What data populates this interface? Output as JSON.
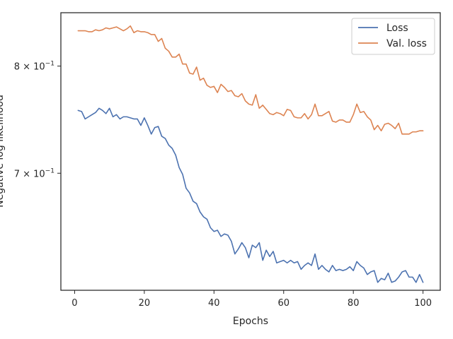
{
  "chart_data": {
    "type": "line",
    "title": "",
    "xlabel": "Epochs",
    "ylabel": "Negative log likelihood",
    "xlim": [
      -3.95,
      104.95
    ],
    "ylim": [
      0.605,
      0.855
    ],
    "yscale": "log",
    "grid": false,
    "legend_position": "top-right",
    "x_ticks": [
      0,
      20,
      40,
      60,
      80,
      100
    ],
    "x_tick_labels": [
      "0",
      "20",
      "40",
      "60",
      "80",
      "100"
    ],
    "y_ticks": [
      0.7,
      0.8
    ],
    "y_tick_labels": [
      {
        "base": "7 × 10",
        "exp": "−1"
      },
      {
        "base": "8 × 10",
        "exp": "−1"
      }
    ],
    "x": [
      1,
      2,
      3,
      4,
      5,
      6,
      7,
      8,
      9,
      10,
      11,
      12,
      13,
      14,
      15,
      16,
      17,
      18,
      19,
      20,
      21,
      22,
      23,
      24,
      25,
      26,
      27,
      28,
      29,
      30,
      31,
      32,
      33,
      34,
      35,
      36,
      37,
      38,
      39,
      40,
      41,
      42,
      43,
      44,
      45,
      46,
      47,
      48,
      49,
      50,
      51,
      52,
      53,
      54,
      55,
      56,
      57,
      58,
      59,
      60,
      61,
      62,
      63,
      64,
      65,
      66,
      67,
      68,
      69,
      70,
      71,
      72,
      73,
      74,
      75,
      76,
      77,
      78,
      79,
      80,
      81,
      82,
      83,
      84,
      85,
      86,
      87,
      88,
      89,
      90,
      91,
      92,
      93,
      94,
      95,
      96,
      97,
      98,
      99,
      100
    ],
    "series": [
      {
        "name": "Loss",
        "color": "#4c72b0",
        "values": [
          0.757,
          0.756,
          0.749,
          0.751,
          0.753,
          0.755,
          0.759,
          0.757,
          0.754,
          0.759,
          0.751,
          0.753,
          0.749,
          0.751,
          0.751,
          0.75,
          0.749,
          0.749,
          0.743,
          0.75,
          0.743,
          0.735,
          0.741,
          0.742,
          0.733,
          0.731,
          0.725,
          0.722,
          0.716,
          0.705,
          0.699,
          0.687,
          0.683,
          0.676,
          0.674,
          0.667,
          0.663,
          0.661,
          0.654,
          0.651,
          0.652,
          0.647,
          0.649,
          0.648,
          0.643,
          0.633,
          0.637,
          0.642,
          0.638,
          0.63,
          0.64,
          0.638,
          0.642,
          0.628,
          0.636,
          0.631,
          0.635,
          0.626,
          0.627,
          0.628,
          0.626,
          0.628,
          0.626,
          0.627,
          0.621,
          0.624,
          0.626,
          0.624,
          0.633,
          0.621,
          0.624,
          0.621,
          0.619,
          0.624,
          0.62,
          0.621,
          0.62,
          0.621,
          0.623,
          0.62,
          0.627,
          0.624,
          0.622,
          0.617,
          0.619,
          0.62,
          0.611,
          0.614,
          0.613,
          0.618,
          0.611,
          0.612,
          0.615,
          0.619,
          0.62,
          0.615,
          0.615,
          0.611,
          0.617,
          0.611
        ]
      },
      {
        "name": "Val. loss",
        "color": "#dd8452",
        "values": [
          0.836,
          0.836,
          0.836,
          0.835,
          0.835,
          0.837,
          0.836,
          0.837,
          0.839,
          0.838,
          0.839,
          0.84,
          0.838,
          0.836,
          0.838,
          0.841,
          0.834,
          0.836,
          0.835,
          0.835,
          0.834,
          0.832,
          0.832,
          0.825,
          0.828,
          0.818,
          0.815,
          0.809,
          0.809,
          0.812,
          0.802,
          0.802,
          0.793,
          0.792,
          0.799,
          0.786,
          0.788,
          0.781,
          0.779,
          0.78,
          0.774,
          0.782,
          0.779,
          0.775,
          0.776,
          0.771,
          0.77,
          0.773,
          0.766,
          0.763,
          0.762,
          0.772,
          0.759,
          0.762,
          0.758,
          0.754,
          0.753,
          0.755,
          0.754,
          0.752,
          0.758,
          0.757,
          0.751,
          0.75,
          0.75,
          0.754,
          0.749,
          0.753,
          0.763,
          0.752,
          0.752,
          0.754,
          0.756,
          0.747,
          0.746,
          0.748,
          0.748,
          0.746,
          0.746,
          0.753,
          0.763,
          0.755,
          0.756,
          0.751,
          0.748,
          0.739,
          0.743,
          0.738,
          0.744,
          0.745,
          0.743,
          0.74,
          0.745,
          0.735,
          0.735,
          0.735,
          0.737,
          0.737,
          0.738,
          0.738
        ]
      }
    ]
  }
}
